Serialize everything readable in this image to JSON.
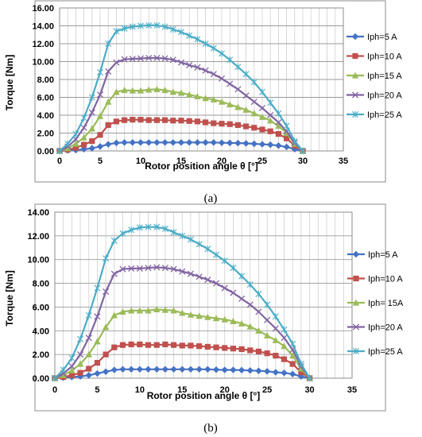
{
  "figure": {
    "captions": [
      "(a)",
      "(b)"
    ]
  },
  "chart_data": [
    {
      "type": "line",
      "title": "",
      "xlabel": "Rotor position angle  θ [°]",
      "ylabel": "Torque [Nm]",
      "xlim": [
        0,
        35
      ],
      "ylim": [
        0,
        16
      ],
      "xticks": [
        "0",
        "5",
        "10",
        "15",
        "20",
        "25",
        "30",
        "35"
      ],
      "yticks": [
        "0.00",
        "2.00",
        "4.00",
        "6.00",
        "8.00",
        "10.00",
        "12.00",
        "14.00",
        "16.00"
      ],
      "grid": true,
      "legend_position": "right",
      "x": [
        0,
        1,
        2,
        3,
        4,
        5,
        6,
        7,
        8,
        9,
        10,
        11,
        12,
        13,
        14,
        15,
        16,
        17,
        18,
        19,
        20,
        21,
        22,
        23,
        24,
        25,
        26,
        27,
        28,
        29,
        30
      ],
      "series": [
        {
          "name": "Iph=5 A",
          "color": "#4472c4",
          "marker": "diamond",
          "values": [
            0.0,
            0.05,
            0.1,
            0.2,
            0.3,
            0.5,
            0.75,
            0.9,
            0.95,
            0.95,
            0.95,
            0.95,
            0.95,
            0.95,
            0.95,
            0.95,
            0.95,
            0.95,
            0.95,
            0.95,
            0.92,
            0.9,
            0.88,
            0.85,
            0.8,
            0.75,
            0.7,
            0.6,
            0.45,
            0.2,
            0.0
          ]
        },
        {
          "name": "Iph=10 A",
          "color": "#c0504d",
          "marker": "square",
          "values": [
            0.0,
            0.15,
            0.35,
            0.7,
            1.1,
            1.8,
            2.9,
            3.3,
            3.45,
            3.5,
            3.5,
            3.45,
            3.45,
            3.45,
            3.4,
            3.4,
            3.35,
            3.3,
            3.2,
            3.1,
            3.05,
            3.0,
            2.9,
            2.75,
            2.6,
            2.4,
            2.2,
            1.9,
            1.4,
            0.6,
            0.0
          ]
        },
        {
          "name": "Iph=15 A",
          "color": "#9bbb59",
          "marker": "triangle",
          "values": [
            0.0,
            0.3,
            0.8,
            1.5,
            2.5,
            3.9,
            5.5,
            6.6,
            6.8,
            6.75,
            6.75,
            6.85,
            6.9,
            6.8,
            6.6,
            6.5,
            6.3,
            6.1,
            5.9,
            5.75,
            5.5,
            5.2,
            4.9,
            4.6,
            4.2,
            3.8,
            3.4,
            2.8,
            2.0,
            0.8,
            0.0
          ]
        },
        {
          "name": "Iph=20 A",
          "color": "#8064a2",
          "marker": "x",
          "values": [
            0.0,
            0.5,
            1.3,
            2.6,
            4.3,
            6.3,
            8.9,
            9.9,
            10.25,
            10.3,
            10.35,
            10.4,
            10.4,
            10.35,
            10.2,
            9.9,
            9.6,
            9.35,
            9.0,
            8.6,
            8.1,
            7.5,
            6.9,
            6.2,
            5.5,
            4.8,
            4.0,
            3.2,
            2.2,
            0.9,
            0.0
          ]
        },
        {
          "name": "Iph=25 A",
          "color": "#4bacc6",
          "marker": "star",
          "values": [
            0.0,
            0.8,
            1.9,
            3.7,
            6.0,
            8.8,
            12.0,
            13.4,
            13.7,
            13.9,
            14.0,
            14.05,
            14.05,
            13.9,
            13.6,
            13.3,
            12.9,
            12.5,
            12.0,
            11.5,
            10.9,
            10.2,
            9.4,
            8.6,
            7.7,
            6.6,
            5.4,
            4.2,
            2.8,
            1.1,
            0.0
          ]
        }
      ]
    },
    {
      "type": "line",
      "title": "",
      "xlabel": "Rotor position angle  θ [°]",
      "ylabel": "Torque [Nm]",
      "xlim": [
        0,
        35
      ],
      "ylim": [
        0,
        14
      ],
      "xticks": [
        "0",
        "5",
        "10",
        "15",
        "20",
        "25",
        "30",
        "35"
      ],
      "yticks": [
        "0.00",
        "2.00",
        "4.00",
        "6.00",
        "8.00",
        "10.00",
        "12.00",
        "14.00"
      ],
      "grid": true,
      "legend_position": "right",
      "x": [
        0,
        1,
        2,
        3,
        4,
        5,
        6,
        7,
        8,
        9,
        10,
        11,
        12,
        13,
        14,
        15,
        16,
        17,
        18,
        19,
        20,
        21,
        22,
        23,
        24,
        25,
        26,
        27,
        28,
        29,
        30
      ],
      "series": [
        {
          "name": "Iph=5 A",
          "color": "#4472c4",
          "marker": "diamond",
          "values": [
            0.0,
            0.05,
            0.1,
            0.15,
            0.25,
            0.4,
            0.55,
            0.7,
            0.75,
            0.75,
            0.75,
            0.75,
            0.75,
            0.75,
            0.75,
            0.75,
            0.75,
            0.75,
            0.75,
            0.72,
            0.7,
            0.7,
            0.68,
            0.65,
            0.62,
            0.58,
            0.5,
            0.45,
            0.35,
            0.15,
            0.0
          ]
        },
        {
          "name": "Iph=10 A",
          "color": "#c0504d",
          "marker": "square",
          "values": [
            0.0,
            0.1,
            0.25,
            0.45,
            0.8,
            1.3,
            2.0,
            2.6,
            2.8,
            2.85,
            2.85,
            2.8,
            2.8,
            2.85,
            2.8,
            2.75,
            2.75,
            2.7,
            2.65,
            2.6,
            2.55,
            2.5,
            2.45,
            2.35,
            2.25,
            2.1,
            1.9,
            1.6,
            1.2,
            0.5,
            0.0
          ]
        },
        {
          "name": "Iph= 15A",
          "color": "#9bbb59",
          "marker": "triangle",
          "values": [
            0.0,
            0.25,
            0.65,
            1.2,
            2.0,
            3.1,
            4.3,
            5.3,
            5.6,
            5.7,
            5.7,
            5.7,
            5.8,
            5.75,
            5.7,
            5.5,
            5.35,
            5.25,
            5.15,
            5.05,
            4.95,
            4.8,
            4.6,
            4.35,
            4.0,
            3.6,
            3.2,
            2.7,
            1.9,
            0.8,
            0.0
          ]
        },
        {
          "name": "Iph=20 A",
          "color": "#8064a2",
          "marker": "x",
          "values": [
            0.0,
            0.4,
            1.0,
            2.0,
            3.4,
            5.2,
            7.3,
            8.8,
            9.2,
            9.25,
            9.25,
            9.3,
            9.35,
            9.3,
            9.2,
            9.0,
            8.8,
            8.55,
            8.3,
            8.0,
            7.6,
            7.2,
            6.7,
            6.2,
            5.6,
            4.9,
            4.2,
            3.4,
            2.4,
            1.0,
            0.0
          ]
        },
        {
          "name": "Iph=25 A",
          "color": "#4bacc6",
          "marker": "star",
          "values": [
            0.0,
            0.7,
            1.7,
            3.3,
            5.3,
            7.6,
            10.1,
            11.6,
            12.2,
            12.5,
            12.7,
            12.75,
            12.75,
            12.6,
            12.3,
            12.0,
            11.7,
            11.3,
            10.9,
            10.4,
            9.9,
            9.3,
            8.6,
            7.9,
            7.1,
            6.2,
            5.2,
            4.1,
            2.9,
            1.2,
            0.0
          ]
        }
      ]
    }
  ]
}
